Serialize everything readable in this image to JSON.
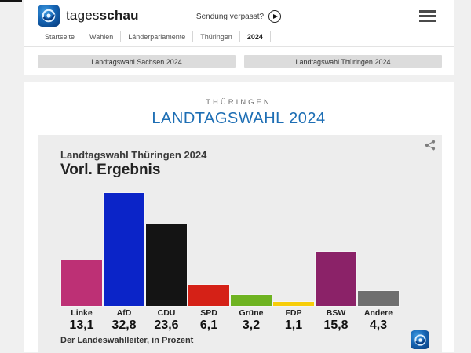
{
  "header": {
    "brand": {
      "tages": "tages",
      "schau": "schau"
    },
    "sendung_verpasst": "Sendung verpasst?",
    "breadcrumb": [
      "Startseite",
      "Wahlen",
      "Länderparlamente",
      "Thüringen",
      "2024"
    ]
  },
  "nav_buttons": {
    "sachsen": "Landtagswahl Sachsen 2024",
    "thueringen": "Landtagswahl Thüringen 2024"
  },
  "page": {
    "kicker": "THÜRINGEN",
    "title": "LANDTAGSWAHL 2024",
    "title_color": "#1d6eb4"
  },
  "chart_data": {
    "type": "bar",
    "title": "Landtagswahl Thüringen 2024",
    "subtitle": "Vorl. Ergebnis",
    "categories": [
      "Linke",
      "AfD",
      "CDU",
      "SPD",
      "Grüne",
      "FDP",
      "BSW",
      "Andere"
    ],
    "values": [
      13.1,
      32.8,
      23.6,
      6.1,
      3.2,
      1.1,
      15.8,
      4.3
    ],
    "value_labels": [
      "13,1",
      "32,8",
      "23,6",
      "6,1",
      "3,2",
      "1,1",
      "15,8",
      "4,3"
    ],
    "colors": [
      "#bd3075",
      "#0b24c8",
      "#141414",
      "#d52117",
      "#6eb321",
      "#f7cd0a",
      "#8b2268",
      "#6f6f6f"
    ],
    "ylim": [
      0,
      33
    ],
    "unit": "Prozent",
    "source": "Der Landeswahlleiter, in Prozent",
    "legend_position": "none",
    "grid": false
  }
}
